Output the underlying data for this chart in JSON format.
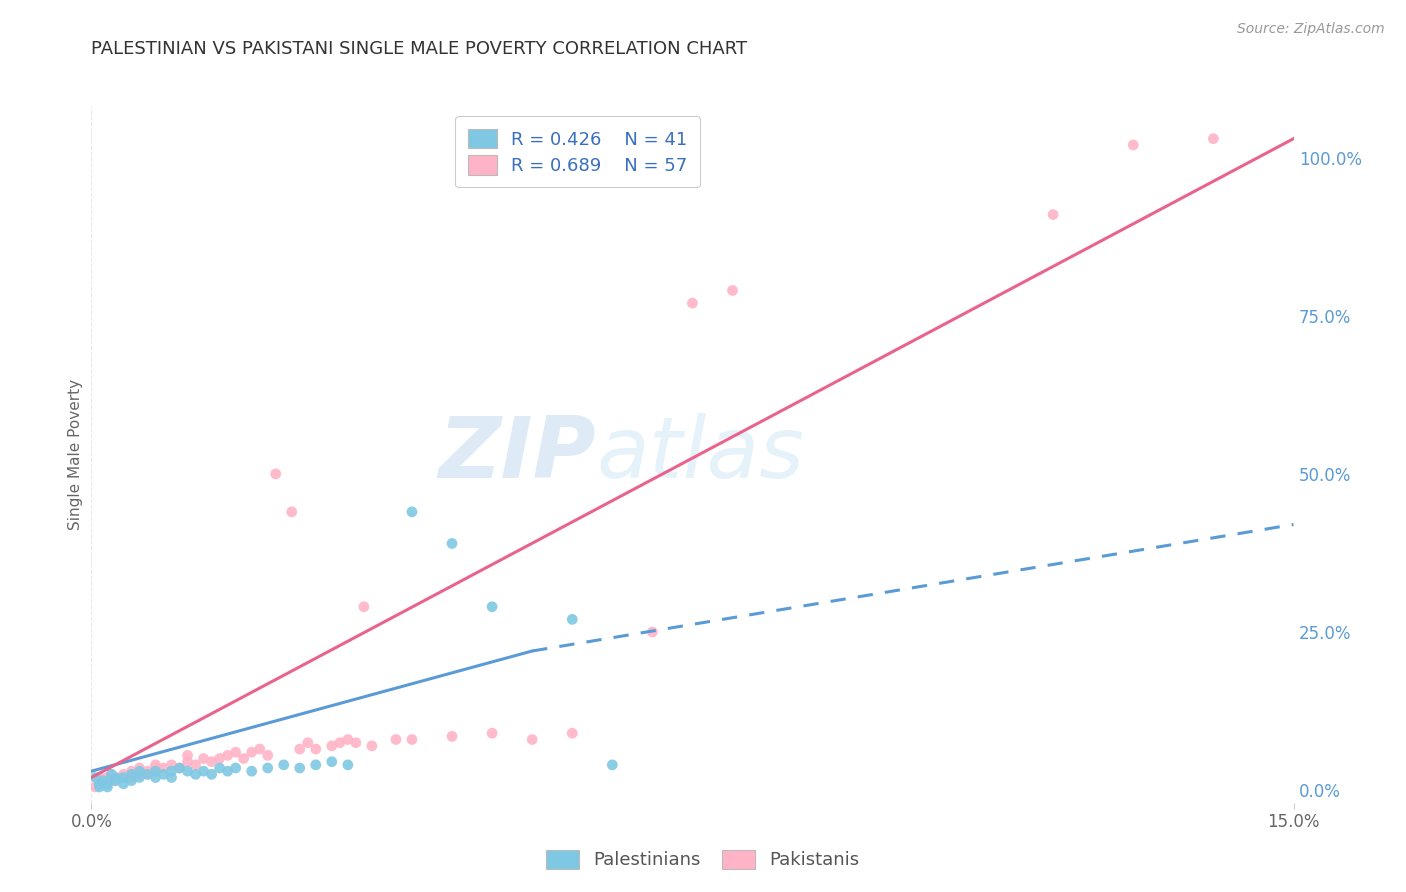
{
  "title": "PALESTINIAN VS PAKISTANI SINGLE MALE POVERTY CORRELATION CHART",
  "source": "Source: ZipAtlas.com",
  "ylabel": "Single Male Poverty",
  "right_yticks": [
    "0.0%",
    "25.0%",
    "50.0%",
    "75.0%",
    "100.0%"
  ],
  "right_ytick_vals": [
    0.0,
    0.25,
    0.5,
    0.75,
    1.0
  ],
  "xmin": 0.0,
  "xmax": 0.15,
  "ymin": -0.02,
  "ymax": 1.08,
  "blue_color": "#7ec8e3",
  "pink_color": "#ffb3c6",
  "blue_line_color": "#5b9bd5",
  "pink_line_color": "#e8648c",
  "watermark_zip": "ZIP",
  "watermark_atlas": "atlas",
  "blue_scatter": [
    [
      0.0005,
      0.02
    ],
    [
      0.001,
      0.01
    ],
    [
      0.001,
      0.005
    ],
    [
      0.0015,
      0.015
    ],
    [
      0.002,
      0.01
    ],
    [
      0.002,
      0.005
    ],
    [
      0.0025,
      0.025
    ],
    [
      0.003,
      0.015
    ],
    [
      0.003,
      0.02
    ],
    [
      0.004,
      0.01
    ],
    [
      0.004,
      0.02
    ],
    [
      0.005,
      0.015
    ],
    [
      0.005,
      0.025
    ],
    [
      0.006,
      0.02
    ],
    [
      0.006,
      0.03
    ],
    [
      0.007,
      0.025
    ],
    [
      0.008,
      0.02
    ],
    [
      0.008,
      0.03
    ],
    [
      0.009,
      0.025
    ],
    [
      0.01,
      0.03
    ],
    [
      0.01,
      0.02
    ],
    [
      0.011,
      0.035
    ],
    [
      0.012,
      0.03
    ],
    [
      0.013,
      0.025
    ],
    [
      0.014,
      0.03
    ],
    [
      0.015,
      0.025
    ],
    [
      0.016,
      0.035
    ],
    [
      0.017,
      0.03
    ],
    [
      0.018,
      0.035
    ],
    [
      0.02,
      0.03
    ],
    [
      0.022,
      0.035
    ],
    [
      0.024,
      0.04
    ],
    [
      0.026,
      0.035
    ],
    [
      0.028,
      0.04
    ],
    [
      0.03,
      0.045
    ],
    [
      0.032,
      0.04
    ],
    [
      0.04,
      0.44
    ],
    [
      0.045,
      0.39
    ],
    [
      0.05,
      0.29
    ],
    [
      0.06,
      0.27
    ],
    [
      0.065,
      0.04
    ]
  ],
  "pink_scatter": [
    [
      0.0005,
      0.005
    ],
    [
      0.001,
      0.01
    ],
    [
      0.001,
      0.02
    ],
    [
      0.0015,
      0.015
    ],
    [
      0.002,
      0.02
    ],
    [
      0.002,
      0.01
    ],
    [
      0.0025,
      0.025
    ],
    [
      0.003,
      0.015
    ],
    [
      0.003,
      0.02
    ],
    [
      0.004,
      0.025
    ],
    [
      0.004,
      0.02
    ],
    [
      0.005,
      0.03
    ],
    [
      0.005,
      0.02
    ],
    [
      0.006,
      0.025
    ],
    [
      0.006,
      0.035
    ],
    [
      0.007,
      0.03
    ],
    [
      0.007,
      0.025
    ],
    [
      0.008,
      0.035
    ],
    [
      0.008,
      0.04
    ],
    [
      0.009,
      0.035
    ],
    [
      0.01,
      0.04
    ],
    [
      0.011,
      0.035
    ],
    [
      0.012,
      0.045
    ],
    [
      0.012,
      0.055
    ],
    [
      0.013,
      0.04
    ],
    [
      0.014,
      0.05
    ],
    [
      0.015,
      0.045
    ],
    [
      0.016,
      0.05
    ],
    [
      0.017,
      0.055
    ],
    [
      0.018,
      0.06
    ],
    [
      0.019,
      0.05
    ],
    [
      0.02,
      0.06
    ],
    [
      0.021,
      0.065
    ],
    [
      0.022,
      0.055
    ],
    [
      0.023,
      0.5
    ],
    [
      0.025,
      0.44
    ],
    [
      0.026,
      0.065
    ],
    [
      0.027,
      0.075
    ],
    [
      0.028,
      0.065
    ],
    [
      0.03,
      0.07
    ],
    [
      0.031,
      0.075
    ],
    [
      0.032,
      0.08
    ],
    [
      0.033,
      0.075
    ],
    [
      0.034,
      0.29
    ],
    [
      0.035,
      0.07
    ],
    [
      0.038,
      0.08
    ],
    [
      0.04,
      0.08
    ],
    [
      0.045,
      0.085
    ],
    [
      0.05,
      0.09
    ],
    [
      0.055,
      0.08
    ],
    [
      0.06,
      0.09
    ],
    [
      0.07,
      0.25
    ],
    [
      0.075,
      0.77
    ],
    [
      0.08,
      0.79
    ],
    [
      0.12,
      0.91
    ],
    [
      0.13,
      1.02
    ],
    [
      0.14,
      1.03
    ]
  ],
  "blue_line_solid": [
    [
      0.0,
      0.03
    ],
    [
      0.055,
      0.22
    ]
  ],
  "blue_line_dash": [
    [
      0.055,
      0.22
    ],
    [
      0.15,
      0.42
    ]
  ],
  "pink_line_solid": [
    [
      0.0,
      0.02
    ],
    [
      0.15,
      1.03
    ]
  ],
  "background_color": "#ffffff",
  "grid_color": "#e8e8e8",
  "title_color": "#333333",
  "right_tick_color": "#5b9bd5",
  "legend_label_color": "#3a6fbf"
}
